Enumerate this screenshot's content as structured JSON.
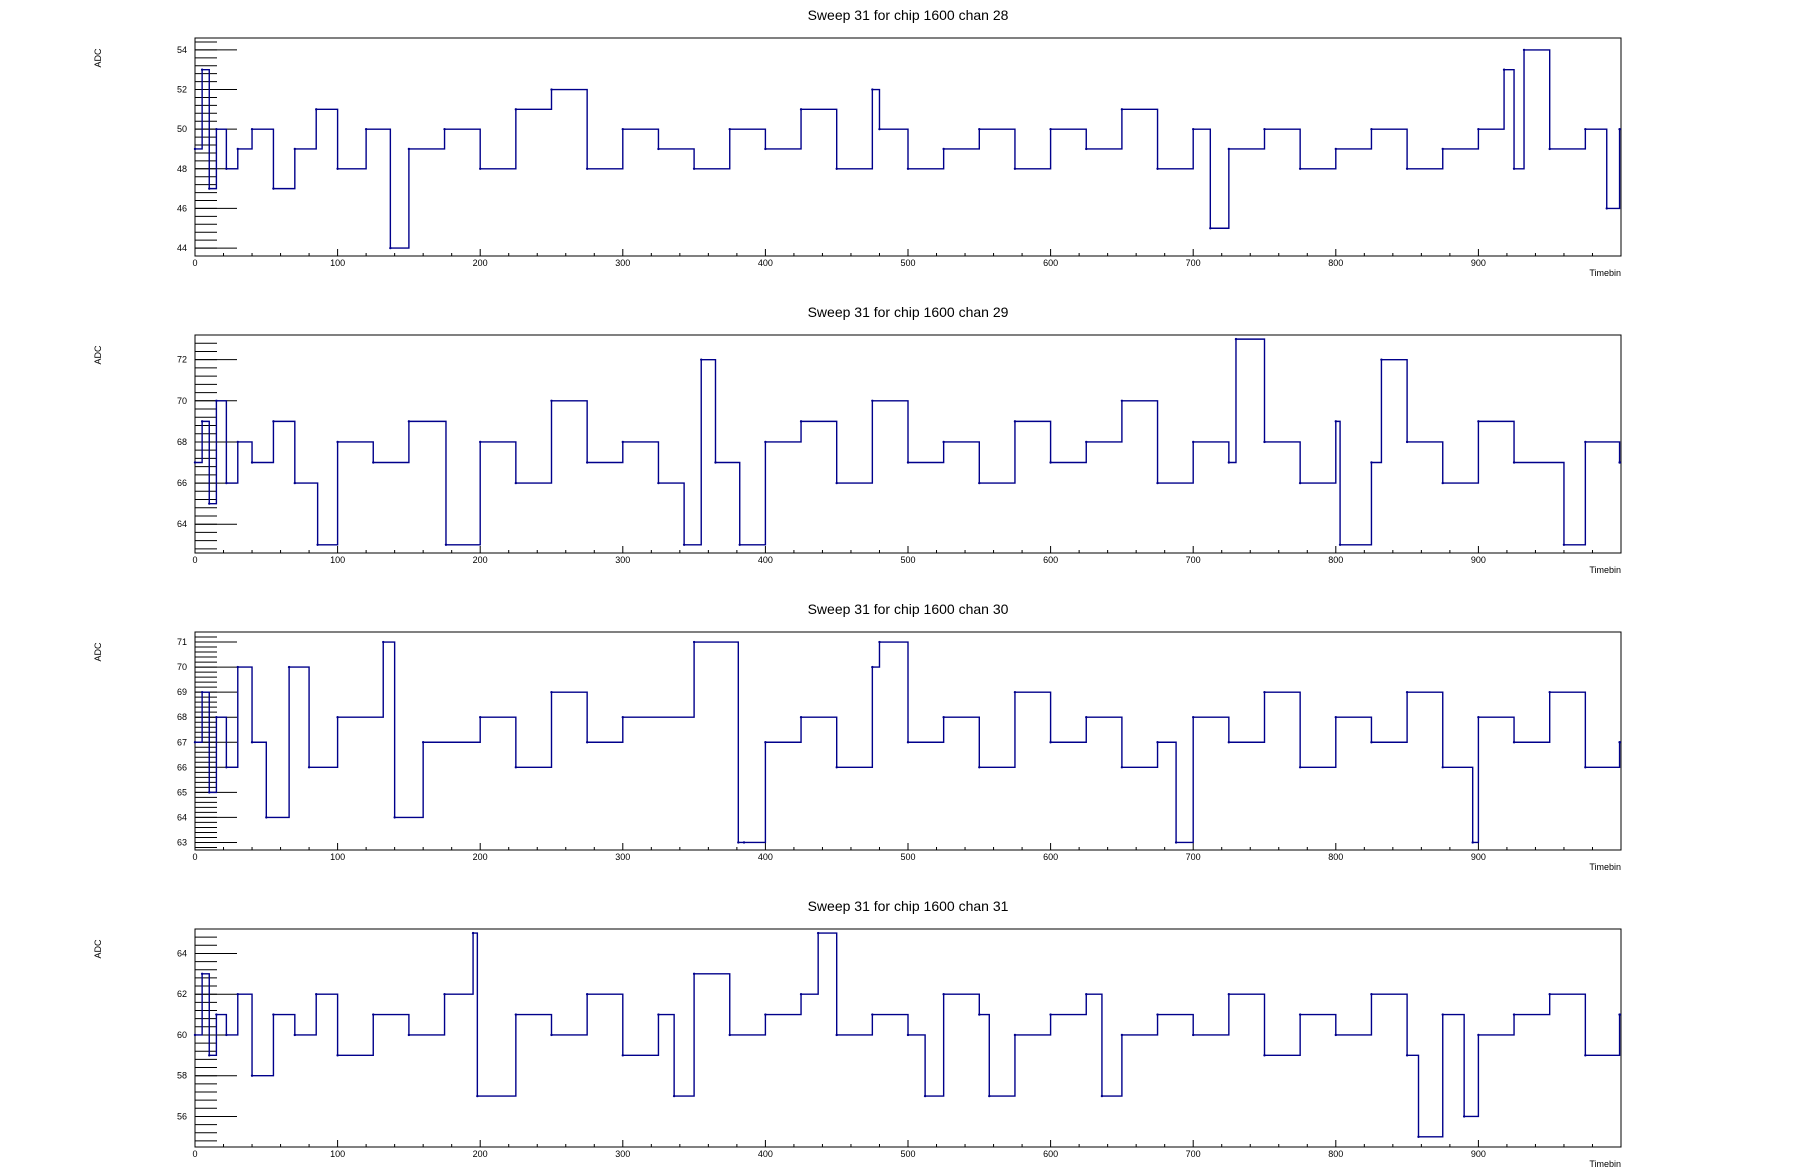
{
  "chart_data": [
    {
      "type": "line",
      "title": "Sweep 31 for chip 1600 chan 28",
      "xlabel": "Timebin",
      "ylabel": "ADC",
      "xlim": [
        0,
        1000
      ],
      "ylim": [
        43.6,
        54.6
      ],
      "xticks": [
        0,
        100,
        200,
        300,
        400,
        500,
        600,
        700,
        800,
        900
      ],
      "yticks": [
        44,
        46,
        48,
        50,
        52,
        54
      ],
      "series": [
        {
          "color": "#00008b",
          "x": [
            0,
            5,
            10,
            15,
            22,
            30,
            40,
            55,
            70,
            85,
            100,
            120,
            137,
            150,
            175,
            200,
            225,
            250,
            275,
            300,
            325,
            350,
            375,
            400,
            425,
            450,
            475,
            480,
            500,
            525,
            550,
            575,
            600,
            625,
            650,
            675,
            700,
            712,
            725,
            750,
            775,
            800,
            825,
            850,
            875,
            900,
            918,
            925,
            932,
            950,
            975,
            990,
            999
          ],
          "values": [
            49,
            53,
            47,
            50,
            48,
            49,
            50,
            47,
            49,
            51,
            48,
            50,
            44,
            49,
            50,
            48,
            51,
            52,
            48,
            50,
            49,
            48,
            50,
            49,
            51,
            48,
            52,
            50,
            48,
            49,
            50,
            48,
            50,
            49,
            51,
            48,
            50,
            45,
            49,
            50,
            48,
            49,
            50,
            48,
            49,
            50,
            53,
            48,
            54,
            49,
            50,
            46,
            50
          ]
        }
      ]
    },
    {
      "type": "line",
      "title": "Sweep 31 for chip 1600 chan 29",
      "xlabel": "Timebin",
      "ylabel": "ADC",
      "xlim": [
        0,
        1000
      ],
      "ylim": [
        62.6,
        73.2
      ],
      "xticks": [
        0,
        100,
        200,
        300,
        400,
        500,
        600,
        700,
        800,
        900
      ],
      "yticks": [
        64,
        66,
        68,
        70,
        72
      ],
      "series": [
        {
          "color": "#00008b",
          "x": [
            0,
            5,
            10,
            15,
            22,
            30,
            40,
            55,
            70,
            86,
            100,
            125,
            150,
            176,
            200,
            225,
            250,
            275,
            300,
            325,
            343,
            355,
            365,
            382,
            400,
            425,
            450,
            475,
            500,
            525,
            550,
            575,
            600,
            625,
            650,
            675,
            700,
            725,
            730,
            750,
            775,
            800,
            803,
            825,
            832,
            850,
            875,
            900,
            925,
            960,
            975,
            999
          ],
          "values": [
            67,
            69,
            65,
            70,
            66,
            68,
            67,
            69,
            66,
            63,
            68,
            67,
            69,
            63,
            68,
            66,
            70,
            67,
            68,
            66,
            63,
            72,
            67,
            63,
            68,
            69,
            66,
            70,
            67,
            68,
            66,
            69,
            67,
            68,
            70,
            66,
            68,
            67,
            73,
            68,
            66,
            69,
            63,
            67,
            72,
            68,
            66,
            69,
            67,
            63,
            68,
            67
          ]
        }
      ]
    },
    {
      "type": "line",
      "title": "Sweep 31 for chip 1600 chan 30",
      "xlabel": "Timebin",
      "ylabel": "ADC",
      "xlim": [
        0,
        1000
      ],
      "ylim": [
        62.7,
        71.4
      ],
      "xticks": [
        0,
        100,
        200,
        300,
        400,
        500,
        600,
        700,
        800,
        900
      ],
      "yticks": [
        63,
        64,
        65,
        66,
        67,
        68,
        69,
        70,
        71
      ],
      "series": [
        {
          "color": "#00008b",
          "x": [
            0,
            5,
            10,
            15,
            22,
            30,
            40,
            50,
            66,
            80,
            100,
            132,
            140,
            160,
            200,
            225,
            250,
            275,
            300,
            350,
            381,
            385,
            400,
            425,
            450,
            475,
            480,
            500,
            525,
            550,
            575,
            600,
            625,
            650,
            675,
            688,
            700,
            725,
            750,
            775,
            800,
            825,
            850,
            875,
            896,
            900,
            925,
            950,
            975,
            999
          ],
          "values": [
            67,
            69,
            65,
            68,
            66,
            70,
            67,
            64,
            70,
            66,
            68,
            71,
            64,
            67,
            68,
            66,
            69,
            67,
            68,
            71,
            63,
            63,
            67,
            68,
            66,
            70,
            71,
            67,
            68,
            66,
            69,
            67,
            68,
            66,
            67,
            63,
            68,
            67,
            69,
            66,
            68,
            67,
            69,
            66,
            63,
            68,
            67,
            69,
            66,
            67
          ]
        }
      ]
    },
    {
      "type": "line",
      "title": "Sweep 31 for chip 1600 chan 31",
      "xlabel": "Timebin",
      "ylabel": "ADC",
      "xlim": [
        0,
        1000
      ],
      "ylim": [
        54.5,
        65.2
      ],
      "xticks": [
        0,
        100,
        200,
        300,
        400,
        500,
        600,
        700,
        800,
        900
      ],
      "yticks": [
        56,
        58,
        60,
        62,
        64
      ],
      "series": [
        {
          "color": "#00008b",
          "x": [
            0,
            5,
            10,
            15,
            22,
            30,
            40,
            55,
            70,
            85,
            100,
            125,
            150,
            175,
            195,
            198,
            225,
            250,
            275,
            300,
            325,
            336,
            350,
            375,
            400,
            425,
            437,
            450,
            475,
            500,
            512,
            525,
            550,
            557,
            575,
            600,
            625,
            636,
            650,
            675,
            700,
            725,
            750,
            775,
            800,
            825,
            850,
            858,
            875,
            890,
            900,
            925,
            950,
            975,
            999
          ],
          "values": [
            60,
            63,
            59,
            61,
            60,
            62,
            58,
            61,
            60,
            62,
            59,
            61,
            60,
            62,
            65,
            57,
            61,
            60,
            62,
            59,
            61,
            57,
            63,
            60,
            61,
            62,
            65,
            60,
            61,
            60,
            57,
            62,
            61,
            57,
            60,
            61,
            62,
            57,
            60,
            61,
            60,
            62,
            59,
            61,
            60,
            62,
            59,
            55,
            61,
            56,
            60,
            61,
            62,
            59,
            61
          ]
        }
      ]
    }
  ]
}
